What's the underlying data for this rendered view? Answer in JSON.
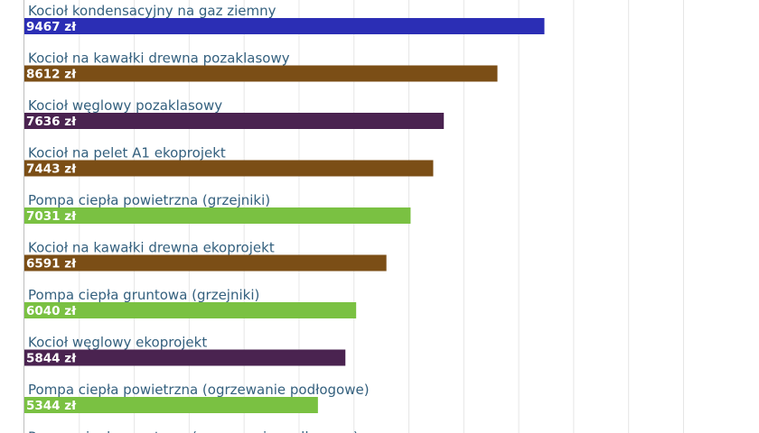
{
  "chart_data": {
    "type": "bar",
    "orientation": "horizontal",
    "unit_suffix": " zł",
    "grid": true,
    "categories": [
      "Kocioł kondensacyjny na gaz ziemny",
      "Kocioł na kawałki drewna pozaklasowy",
      "Kocioł węglowy pozaklasowy",
      "Kocioł na pelet A1 ekoprojekt",
      "Pompa ciepła powietrzna (grzejniki)",
      "Kocioł na kawałki drewna ekoprojekt",
      "Pompa ciepła gruntowa (grzejniki)",
      "Kocioł węglowy ekoprojekt",
      "Pompa ciepła powietrzna (ogrzewanie podłogowe)",
      "Pompa ciepła gruntowa (ogrzewanie podłogowe)"
    ],
    "values": [
      9467,
      8612,
      7636,
      7443,
      7031,
      6591,
      6040,
      5844,
      5344,
      null
    ],
    "value_labels": [
      "9467 zł",
      "8612 zł",
      "7636 zł",
      "7443 zł",
      "7031 zł",
      "6591 zł",
      "6040 zł",
      "5844 zł",
      "5344 zł",
      ""
    ],
    "colors": [
      "#2b2eb5",
      "#7b4e16",
      "#4a2350",
      "#7b4e16",
      "#7ac142",
      "#7b4e16",
      "#7ac142",
      "#4a2350",
      "#7ac142",
      "#7ac142"
    ],
    "xlim": [
      0,
      12000
    ]
  }
}
